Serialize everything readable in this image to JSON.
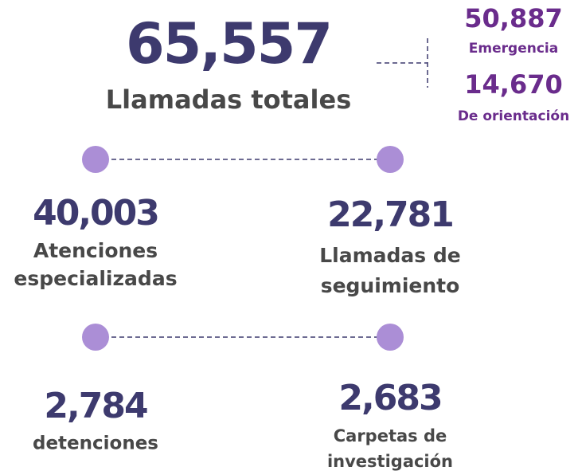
{
  "total": {
    "value": "65,557",
    "label": "Llamadas totales"
  },
  "breakdown": [
    {
      "value": "50,887",
      "label": "Emergencia"
    },
    {
      "value": "14,670",
      "label": "De orientación"
    }
  ],
  "items": [
    {
      "value": "40,003",
      "label": [
        "Atenciones",
        "especializadas"
      ]
    },
    {
      "value": "22,781",
      "label": [
        "Llamadas de",
        "seguimiento"
      ]
    },
    {
      "value": "2,784",
      "label": [
        "detenciones"
      ]
    },
    {
      "value": "2,683",
      "label": [
        "Carpetas de",
        "investigación"
      ]
    }
  ]
}
